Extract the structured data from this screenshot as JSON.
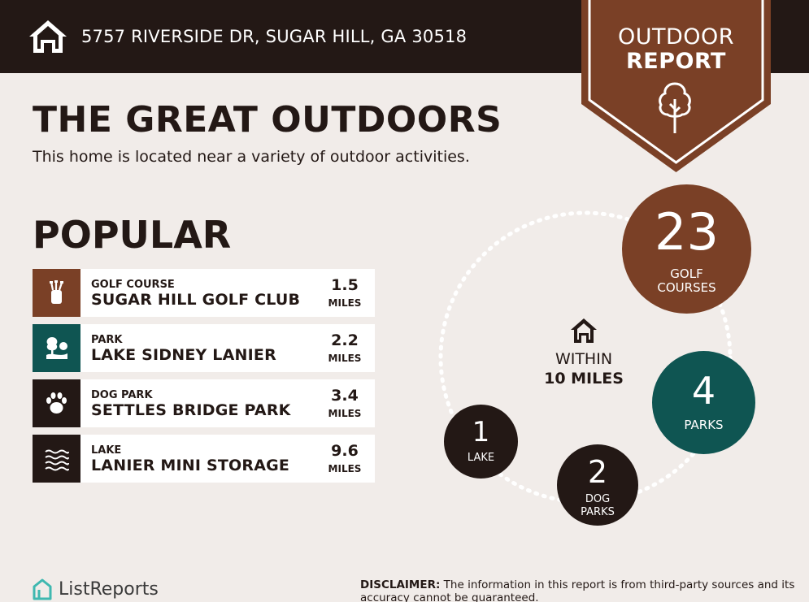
{
  "header": {
    "address": "5757 RIVERSIDE DR, SUGAR HILL, GA 30518",
    "icon": "house-icon"
  },
  "badge": {
    "line1": "OUTDOOR",
    "line2": "REPORT",
    "icon": "tree-icon",
    "color": "#7a4026"
  },
  "main": {
    "title": "THE GREAT OUTDOORS",
    "subtitle": "This home is located near a variety of outdoor activities."
  },
  "popular": {
    "heading": "POPULAR",
    "items": [
      {
        "category": "GOLF COURSE",
        "name": "SUGAR HILL GOLF CLUB",
        "distance": "1.5",
        "unit": "MILES",
        "icon": "golf-bag-icon",
        "color": "#7a4026"
      },
      {
        "category": "PARK",
        "name": "LAKE SIDNEY LANIER",
        "distance": "2.2",
        "unit": "MILES",
        "icon": "park-tree-icon",
        "color": "#0f5552"
      },
      {
        "category": "DOG PARK",
        "name": "SETTLES BRIDGE PARK",
        "distance": "3.4",
        "unit": "MILES",
        "icon": "paw-icon",
        "color": "#231815"
      },
      {
        "category": "LAKE",
        "name": "LANIER MINI STORAGE",
        "distance": "9.6",
        "unit": "MILES",
        "icon": "waves-icon",
        "color": "#231815"
      }
    ]
  },
  "summary": {
    "within_line1": "WITHIN",
    "within_line2": "10 MILES",
    "golf": {
      "count": "23",
      "label": "GOLF COURSES"
    },
    "parks": {
      "count": "4",
      "label": "PARKS"
    },
    "dog_parks": {
      "count": "2",
      "label": "DOG PARKS"
    },
    "lakes": {
      "count": "1",
      "label": "LAKE"
    }
  },
  "footer": {
    "logo_text": "ListReports",
    "disclaimer_label": "DISCLAIMER:",
    "disclaimer_text": " The information in this report is from third-party sources and its accuracy cannot be guaranteed."
  },
  "colors": {
    "background": "#f1ece9",
    "dark": "#231815",
    "brown": "#7a4026",
    "teal": "#0f5552"
  }
}
